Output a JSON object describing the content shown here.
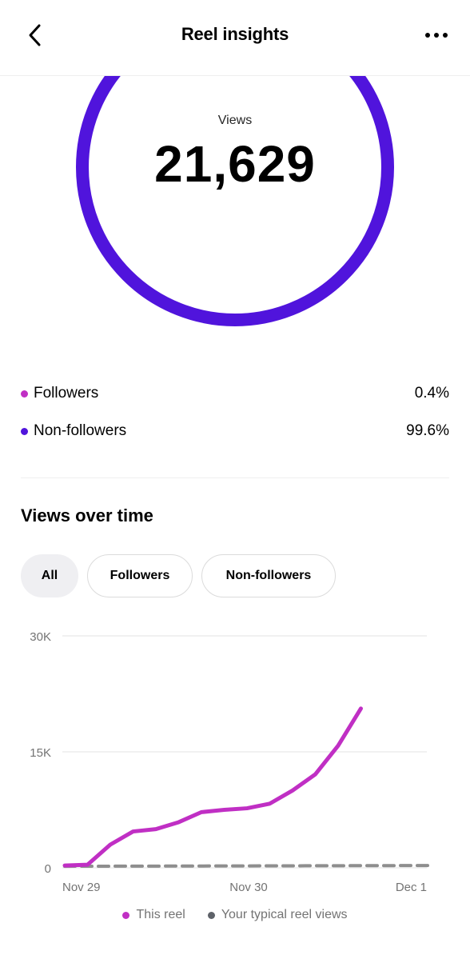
{
  "header": {
    "title": "Reel insights",
    "back_icon": "chevron-left-icon",
    "more_icon": "more-horizontal-icon"
  },
  "summary": {
    "views_label": "Views",
    "views_value": "21,629",
    "ring_color": "#5014dc"
  },
  "breakdown": [
    {
      "label": "Followers",
      "percent": "0.4%",
      "color": "#c02fc4"
    },
    {
      "label": "Non-followers",
      "percent": "99.6%",
      "color": "#5014dc"
    }
  ],
  "views_over_time": {
    "title": "Views over time",
    "filters": [
      {
        "label": "All",
        "active": true
      },
      {
        "label": "Followers",
        "active": false
      },
      {
        "label": "Non-followers",
        "active": false
      }
    ]
  },
  "chart_data": {
    "type": "line",
    "y_ticks": [
      "30K",
      "15K",
      "0"
    ],
    "x_ticks": [
      "Nov 29",
      "Nov 30",
      "Dec 1"
    ],
    "ylim": [
      0,
      30000
    ],
    "grid": true,
    "legend_position": "bottom-center",
    "series": [
      {
        "name": "This reel",
        "color": "#c02fc4",
        "style": "solid",
        "x": [
          "Nov 29 00:00",
          "Nov 29 03:00",
          "Nov 29 06:00",
          "Nov 29 09:00",
          "Nov 29 12:00",
          "Nov 29 15:00",
          "Nov 29 18:00",
          "Nov 29 21:00",
          "Nov 30 00:00",
          "Nov 30 03:00",
          "Nov 30 06:00",
          "Nov 30 09:00",
          "Nov 30 12:00",
          "Nov 30 15:00"
        ],
        "values": [
          300,
          400,
          3000,
          4700,
          5000,
          5900,
          7200,
          7500,
          7700,
          8300,
          10000,
          12100,
          15800,
          20600
        ]
      },
      {
        "name": "Your typical reel views",
        "color": "#8e8e8e",
        "style": "dashed",
        "x": [
          "Nov 29 00:00",
          "Dec 1 00:00"
        ],
        "values": [
          200,
          300
        ]
      }
    ]
  }
}
